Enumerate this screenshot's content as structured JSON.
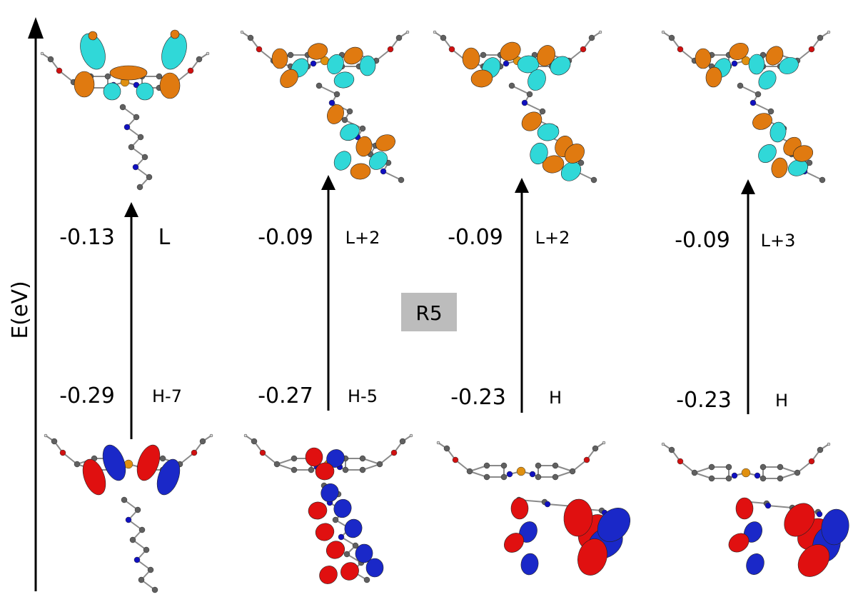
{
  "axis": {
    "label": "E(eV)"
  },
  "badge": "R5",
  "transitions": [
    {
      "lower_energy": "-0.29",
      "lower_orbital": "H-7",
      "upper_energy": "-0.13",
      "upper_orbital": "L"
    },
    {
      "lower_energy": "-0.27",
      "lower_orbital": "H-5",
      "upper_energy": "-0.09",
      "upper_orbital": "L+2"
    },
    {
      "lower_energy": "-0.23",
      "lower_orbital": "H",
      "upper_energy": "-0.09",
      "upper_orbital": "L+2"
    },
    {
      "lower_energy": "-0.23",
      "lower_orbital": "H",
      "upper_energy": "-0.09",
      "upper_orbital": "L+3"
    }
  ],
  "colors": {
    "homo_positive": "#e01010",
    "homo_negative": "#1a28c8",
    "lumo_positive": "#e07a10",
    "lumo_negative": "#30d8d8",
    "atom_carbon": "#606060",
    "atom_oxygen": "#d01010",
    "atom_nitrogen": "#1010c0",
    "atom_metal": "#e09010",
    "arrow": "#000000"
  }
}
